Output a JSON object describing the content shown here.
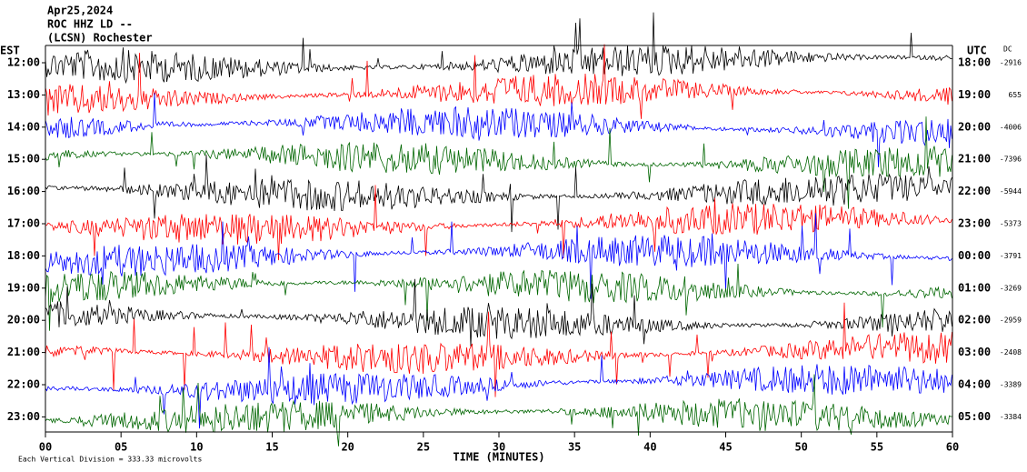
{
  "chart_data": {
    "type": "helicorder",
    "title_lines": [
      "Apr25,2024",
      "ROC HHZ LD --",
      "(LCSN) Rochester"
    ],
    "left_axis_label": "EST",
    "right_axis_label": "UTC",
    "dc_label": "DC",
    "rows": [
      {
        "est": "12:00",
        "utc": "18:00",
        "dc": -2916
      },
      {
        "est": "13:00",
        "utc": "19:00",
        "dc": 655
      },
      {
        "est": "14:00",
        "utc": "20:00",
        "dc": -4006
      },
      {
        "est": "15:00",
        "utc": "21:00",
        "dc": -7396
      },
      {
        "est": "16:00",
        "utc": "22:00",
        "dc": -5944
      },
      {
        "est": "17:00",
        "utc": "23:00",
        "dc": -5373
      },
      {
        "est": "18:00",
        "utc": "00:00",
        "dc": -3791
      },
      {
        "est": "19:00",
        "utc": "01:00",
        "dc": -3269
      },
      {
        "est": "20:00",
        "utc": "02:00",
        "dc": -2959
      },
      {
        "est": "21:00",
        "utc": "03:00",
        "dc": -2408
      },
      {
        "est": "22:00",
        "utc": "04:00",
        "dc": -3389
      },
      {
        "est": "23:00",
        "utc": "05:00",
        "dc": -3384
      }
    ],
    "colors": [
      "#000000",
      "#ff0000",
      "#0000ff",
      "#006600"
    ],
    "xlim": [
      0,
      60
    ],
    "xticks": [
      {
        "value": 0,
        "label": "00"
      },
      {
        "value": 5,
        "label": "05"
      },
      10,
      15,
      20,
      25,
      30,
      35,
      40,
      45,
      50,
      55,
      60
    ],
    "xlabel": "TIME (MINUTES)",
    "footnote": "Each Vertical Division = 333.33 microvolts"
  }
}
